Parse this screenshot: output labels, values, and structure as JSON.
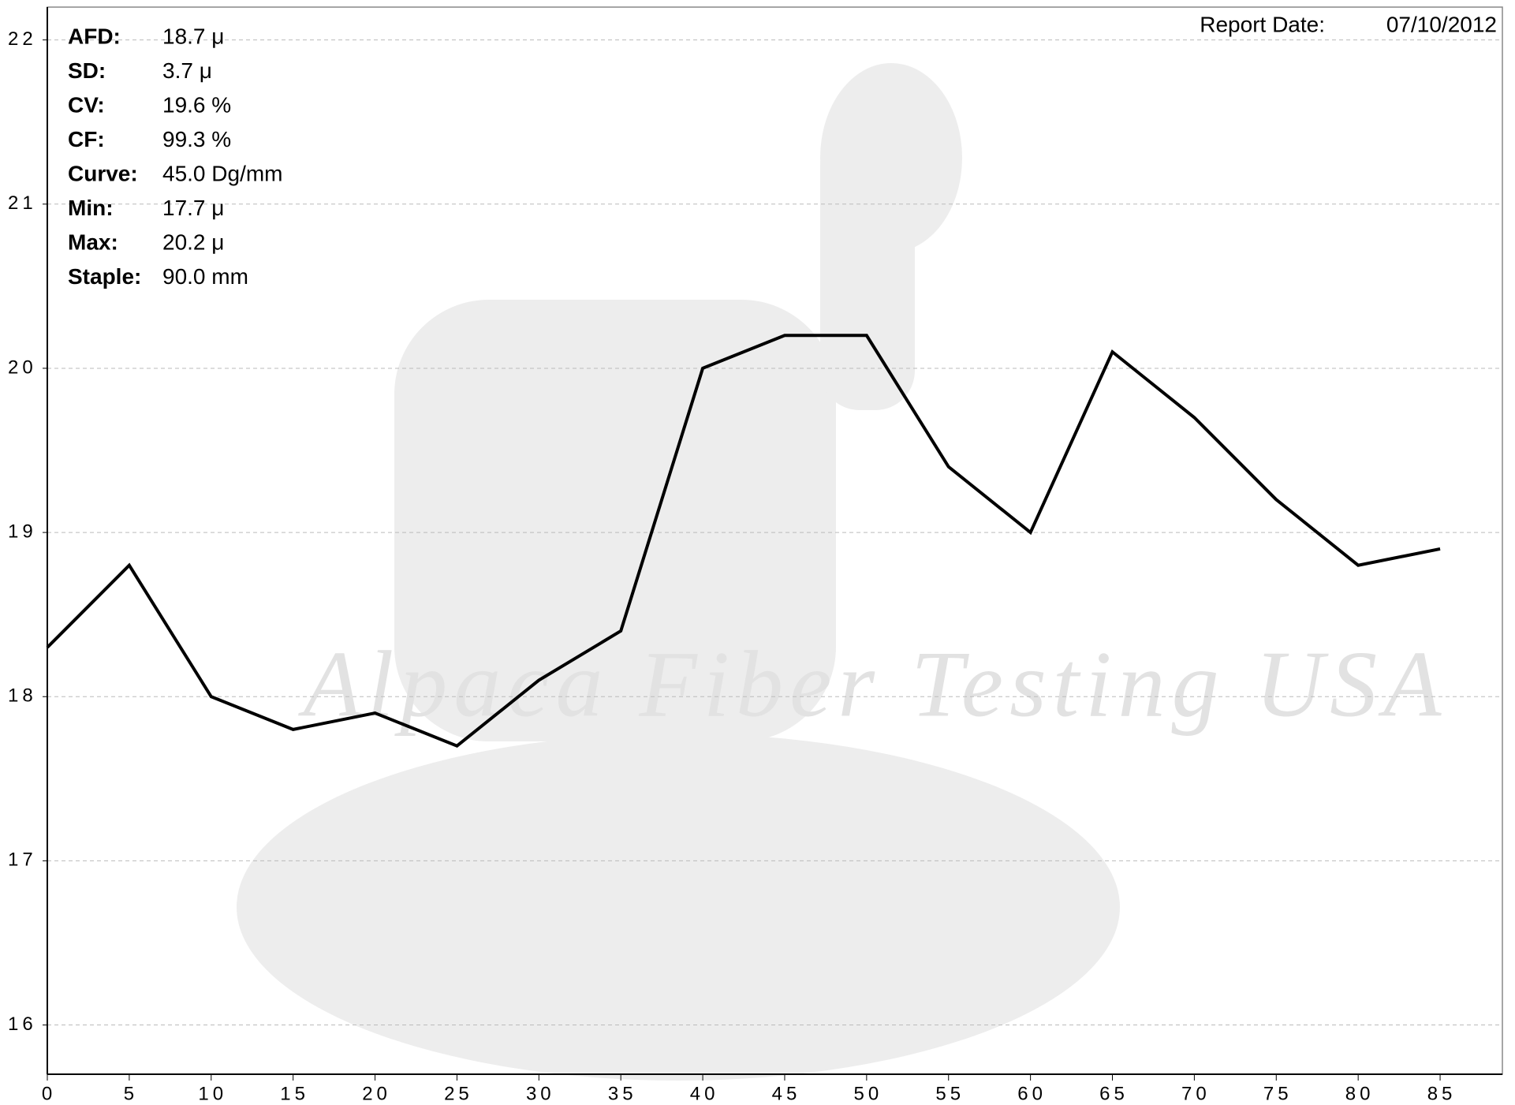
{
  "chart_data": {
    "type": "line",
    "watermark": "Alpaca Fiber Testing USA",
    "report_date_label": "Report Date:",
    "report_date": "07/10/2012",
    "stats": [
      {
        "label": "AFD:",
        "value": "18.7 μ"
      },
      {
        "label": "SD:",
        "value": "3.7 μ"
      },
      {
        "label": "CV:",
        "value": "19.6 %"
      },
      {
        "label": "CF:",
        "value": "99.3 %"
      },
      {
        "label": "Curve:",
        "value": "45.0 Dg/mm"
      },
      {
        "label": "Min:",
        "value": "17.7 μ"
      },
      {
        "label": "Max:",
        "value": "20.2 μ"
      },
      {
        "label": "Staple:",
        "value": "90.0 mm"
      }
    ],
    "x": [
      0,
      5,
      10,
      15,
      20,
      25,
      30,
      35,
      40,
      45,
      50,
      55,
      60,
      65,
      70,
      75,
      80,
      85
    ],
    "series": [
      {
        "color": "#000000",
        "values": [
          18.3,
          18.8,
          18.0,
          17.8,
          17.9,
          17.7,
          18.1,
          18.4,
          20.0,
          20.2,
          20.2,
          19.4,
          19.0,
          20.1,
          19.7,
          19.2,
          18.8,
          18.9
        ]
      }
    ],
    "xlim": [
      0,
      88.8
    ],
    "ylim": [
      15.7,
      22.2
    ],
    "xticks": [
      0,
      5,
      10,
      15,
      20,
      25,
      30,
      35,
      40,
      45,
      50,
      55,
      60,
      65,
      70,
      75,
      80,
      85
    ],
    "yticks": [
      16,
      17,
      18,
      19,
      20,
      21,
      22
    ],
    "grid": true
  }
}
